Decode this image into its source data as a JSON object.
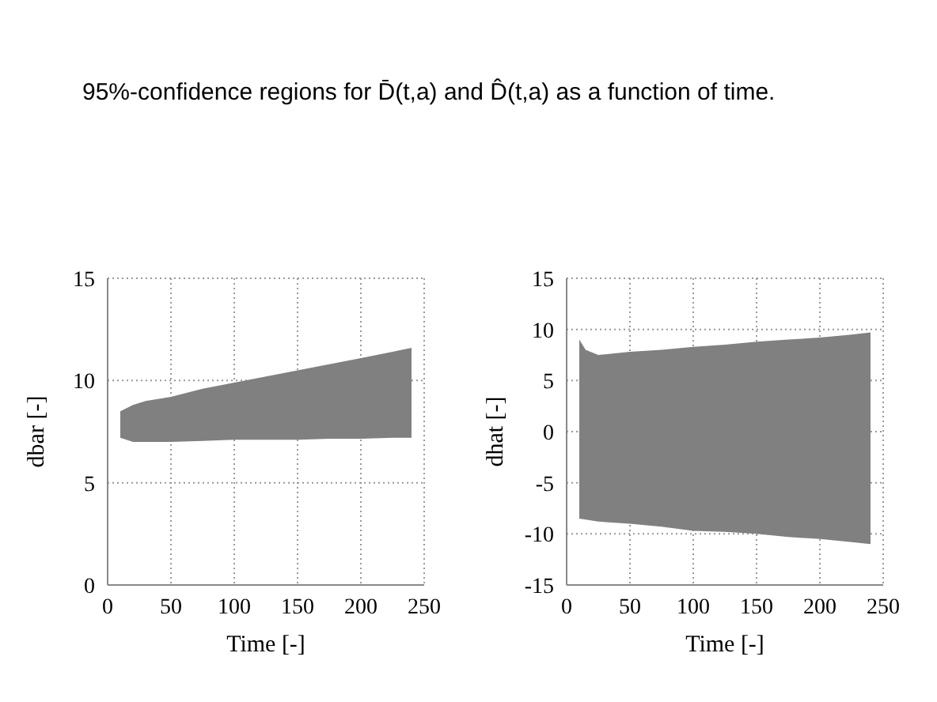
{
  "chart_data": [
    {
      "type": "line",
      "title": "95%-confidence regions for D̄(t,a) and D̂(t,a) as a function of time.",
      "xlabel": "Time [-]",
      "ylabel": "dbar [-]",
      "xlim": [
        0,
        250
      ],
      "xticks": [
        0,
        50,
        100,
        150,
        200,
        250
      ],
      "ylim": [
        0,
        15
      ],
      "yticks": [
        0,
        5,
        10,
        15
      ],
      "grid": true,
      "x": [
        10,
        20,
        30,
        50,
        75,
        100,
        125,
        150,
        175,
        200,
        225,
        240
      ],
      "series": [
        {
          "color": "#808080",
          "values": [
            null,
            null,
            null,
            null,
            null,
            null,
            null,
            null,
            null,
            null,
            null,
            null
          ],
          "upper": [
            8.5,
            8.8,
            9.0,
            9.2,
            9.6,
            9.9,
            10.2,
            10.5,
            10.8,
            11.1,
            11.4,
            11.6
          ],
          "lower": [
            7.2,
            7.0,
            7.0,
            7.0,
            7.05,
            7.1,
            7.1,
            7.1,
            7.15,
            7.15,
            7.2,
            7.2
          ]
        }
      ]
    },
    {
      "type": "line",
      "xlabel": "Time [-]",
      "ylabel": "dhat [-]",
      "xlim": [
        0,
        250
      ],
      "xticks": [
        0,
        50,
        100,
        150,
        200,
        250
      ],
      "ylim": [
        -15,
        15
      ],
      "yticks": [
        -15,
        -10,
        -5,
        0,
        5,
        10,
        15
      ],
      "grid": true,
      "x": [
        10,
        15,
        25,
        50,
        75,
        100,
        125,
        150,
        175,
        200,
        225,
        240
      ],
      "series": [
        {
          "color": "#808080",
          "values": [
            null,
            null,
            null,
            null,
            null,
            null,
            null,
            null,
            null,
            null,
            null,
            null
          ],
          "upper": [
            9.0,
            8.0,
            7.5,
            7.8,
            8.0,
            8.3,
            8.5,
            8.8,
            9.0,
            9.2,
            9.5,
            9.7
          ],
          "lower": [
            -8.5,
            -8.6,
            -8.8,
            -9.0,
            -9.3,
            -9.7,
            -9.8,
            -10.0,
            -10.3,
            -10.5,
            -10.8,
            -11.0
          ]
        }
      ]
    }
  ]
}
